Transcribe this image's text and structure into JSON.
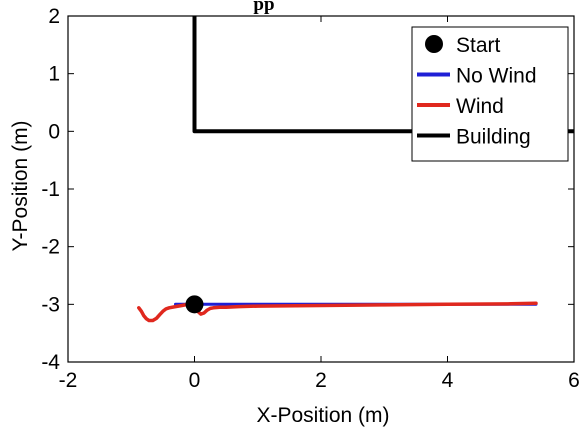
{
  "chart_data": {
    "type": "line",
    "title": "pp",
    "xlabel": "X-Position (m)",
    "ylabel": "Y-Position (m)",
    "xlim": [
      -2,
      6
    ],
    "ylim": [
      -4,
      2
    ],
    "xticks": [
      -2,
      0,
      2,
      4,
      6
    ],
    "yticks": [
      -4,
      -3,
      -2,
      -1,
      0,
      1,
      2
    ],
    "xtick_labels": [
      "-2",
      "0",
      "2",
      "4",
      "6"
    ],
    "ytick_labels": [
      "-4",
      "-3",
      "-2",
      "-1",
      "0",
      "1",
      "2"
    ],
    "grid": false,
    "legend_position": "top-right",
    "series": [
      {
        "name": "Start",
        "kind": "marker",
        "color": "#000000",
        "x": [
          0
        ],
        "y": [
          -3
        ]
      },
      {
        "name": "No Wind",
        "kind": "line",
        "color": "#1f1fd6",
        "x": [
          -0.3,
          5.4
        ],
        "y": [
          -3.0,
          -3.0
        ]
      },
      {
        "name": "Wind",
        "kind": "line",
        "color": "#e0281e",
        "x": [
          -0.88,
          -0.84,
          -0.8,
          -0.76,
          -0.72,
          -0.66,
          -0.6,
          -0.55,
          -0.5,
          -0.45,
          -0.4,
          -0.3,
          -0.2,
          -0.1,
          0.0,
          0.05,
          0.1,
          0.15,
          0.2,
          0.25,
          0.3,
          0.4,
          0.5,
          0.7,
          1.0,
          2.0,
          3.0,
          4.0,
          5.0,
          5.4
        ],
        "y": [
          -3.06,
          -3.12,
          -3.2,
          -3.25,
          -3.28,
          -3.28,
          -3.24,
          -3.18,
          -3.12,
          -3.08,
          -3.06,
          -3.04,
          -3.02,
          -3.0,
          -3.02,
          -3.12,
          -3.17,
          -3.15,
          -3.1,
          -3.07,
          -3.06,
          -3.05,
          -3.05,
          -3.04,
          -3.03,
          -3.02,
          -3.01,
          -3.0,
          -2.99,
          -2.98
        ]
      },
      {
        "name": "Building",
        "kind": "line",
        "color": "#000000",
        "x": [
          0,
          0,
          6
        ],
        "y": [
          2,
          0,
          0
        ]
      }
    ]
  }
}
